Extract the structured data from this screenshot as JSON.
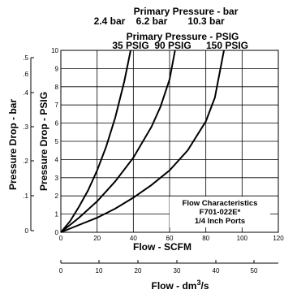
{
  "chart_data": {
    "type": "line",
    "header": {
      "bar_title": "Primary Pressure - bar",
      "bar_values": [
        "2.4 bar",
        "6.2 bar",
        "10.3 bar"
      ],
      "psig_title": "Primary Pressure - PSIG",
      "psig_values": [
        "35 PSIG",
        "90 PSIG",
        "150 PSIG"
      ]
    },
    "xlabel": "Flow - SCFM",
    "ylabel": "Pressure Drop - PSIG",
    "xlim": [
      0,
      120
    ],
    "ylim": [
      0,
      10
    ],
    "x_ticks": [
      "0",
      "20",
      "40",
      "60",
      "80",
      "100",
      "120"
    ],
    "y_ticks": [
      "0",
      "1",
      "2",
      "3",
      "4",
      "5",
      "6",
      "7",
      "8",
      "9",
      "10"
    ],
    "grid": true,
    "secondary_x": {
      "label_main": "Flow - dm",
      "label_sup": "3",
      "label_tail": "/s",
      "ticks": [
        "0",
        "10",
        "20",
        "30",
        "40",
        "50"
      ]
    },
    "secondary_y": {
      "label": "Pressure Drop - bar",
      "ticks": [
        ".1",
        ".2",
        ".3",
        ".4",
        ".5",
        ".6",
        "0"
      ]
    },
    "annotation": [
      "Flow Characteristics",
      "F701-022E*",
      "1/4 Inch Ports"
    ],
    "series": [
      {
        "name": "35 PSIG",
        "x": [
          0,
          5,
          10,
          15,
          20,
          25,
          30,
          35,
          38.5
        ],
        "y": [
          0,
          0.6,
          1.4,
          2.3,
          3.4,
          4.7,
          6.3,
          8.3,
          10
        ]
      },
      {
        "name": "90 PSIG",
        "x": [
          0,
          10,
          20,
          30,
          40,
          50,
          55,
          60,
          63
        ],
        "y": [
          0,
          0.8,
          1.7,
          2.8,
          4.1,
          5.8,
          6.9,
          8.4,
          10
        ]
      },
      {
        "name": "150 PSIG",
        "x": [
          0,
          10,
          20,
          30,
          40,
          50,
          60,
          70,
          80,
          85,
          90
        ],
        "y": [
          0,
          0.4,
          0.8,
          1.3,
          1.9,
          2.6,
          3.4,
          4.5,
          6.1,
          7.4,
          10
        ]
      }
    ]
  }
}
